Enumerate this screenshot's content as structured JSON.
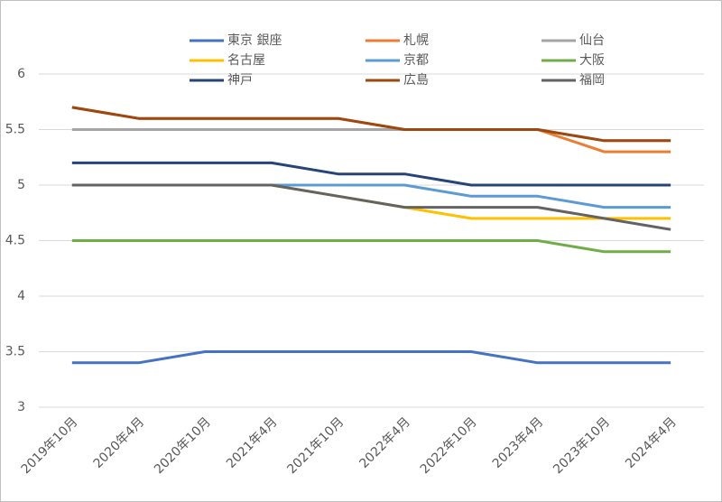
{
  "chart_data": {
    "type": "line",
    "categories": [
      "2019年10月",
      "2020年4月",
      "2020年10月",
      "2021年4月",
      "2021年10月",
      "2022年4月",
      "2022年10月",
      "2023年4月",
      "2023年10月",
      "2024年4月"
    ],
    "series": [
      {
        "name": "東京 銀座",
        "color": "#4472c4",
        "values": [
          3.4,
          3.4,
          3.5,
          3.5,
          3.5,
          3.5,
          3.5,
          3.4,
          3.4,
          3.4
        ]
      },
      {
        "name": "札幌",
        "color": "#ed7d31",
        "values": [
          5.7,
          5.6,
          5.6,
          5.6,
          5.6,
          5.5,
          5.5,
          5.5,
          5.3,
          5.3
        ]
      },
      {
        "name": "仙台",
        "color": "#a5a5a5",
        "values": [
          5.5,
          5.5,
          5.5,
          5.5,
          5.5,
          5.5,
          5.5,
          5.5,
          5.4,
          5.4
        ]
      },
      {
        "name": "名古屋",
        "color": "#ffc000",
        "values": [
          5,
          5,
          5,
          5,
          4.9,
          4.8,
          4.7,
          4.7,
          4.7,
          4.7
        ]
      },
      {
        "name": "京都",
        "color": "#5b9bd5",
        "values": [
          5,
          5,
          5,
          5,
          5,
          5,
          4.9,
          4.9,
          4.8,
          4.8
        ]
      },
      {
        "name": "大阪",
        "color": "#70ad47",
        "values": [
          4.5,
          4.5,
          4.5,
          4.5,
          4.5,
          4.5,
          4.5,
          4.5,
          4.4,
          4.4
        ]
      },
      {
        "name": "神戸",
        "color": "#264478",
        "values": [
          5.2,
          5.2,
          5.2,
          5.2,
          5.1,
          5.1,
          5,
          5,
          5,
          5
        ]
      },
      {
        "name": "広島",
        "color": "#9e480e",
        "values": [
          5.7,
          5.6,
          5.6,
          5.6,
          5.6,
          5.5,
          5.5,
          5.5,
          5.4,
          5.4
        ]
      },
      {
        "name": "福岡",
        "color": "#636363",
        "values": [
          5,
          5,
          5,
          5,
          4.9,
          4.8,
          4.8,
          4.8,
          4.7,
          4.6
        ]
      }
    ],
    "ylim": [
      3,
      6
    ],
    "yticks": [
      3,
      3.5,
      4,
      4.5,
      5,
      5.5,
      6
    ],
    "grid": true,
    "legend": "top"
  }
}
